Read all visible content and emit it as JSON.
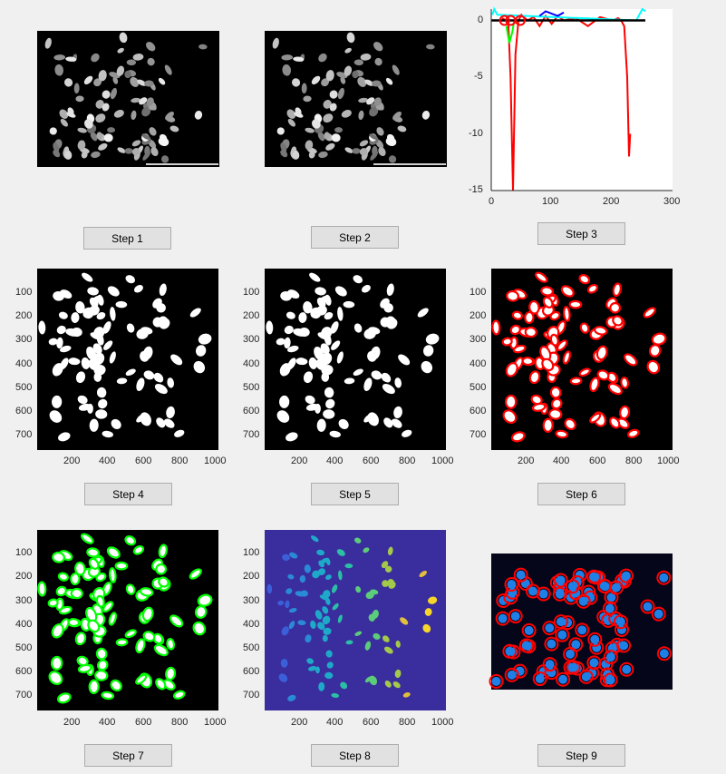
{
  "buttons": [
    "Step 1",
    "Step 2",
    "Step 3",
    "Step 4",
    "Step 5",
    "Step 6",
    "Step 7",
    "Step 8",
    "Step 9"
  ],
  "image_axes": {
    "x_ticks": [
      "200",
      "400",
      "600",
      "800",
      "1000"
    ],
    "y_ticks": [
      "100",
      "200",
      "300",
      "400",
      "500",
      "600",
      "700"
    ]
  },
  "chart_data": {
    "type": "line",
    "x_ticks": [
      "0",
      "100",
      "200",
      "300"
    ],
    "y_ticks": [
      "0",
      "-5",
      "-10",
      "-15"
    ],
    "xlim": [
      0,
      300
    ],
    "ylim": [
      -15,
      1
    ],
    "series": [
      {
        "color": "#ff0000",
        "x": [
          18,
          24,
          28,
          32,
          36,
          40,
          45,
          50,
          60,
          70,
          80,
          90,
          100,
          110,
          120,
          140,
          160,
          180,
          200,
          210,
          215,
          220,
          225,
          228,
          230
        ],
        "y": [
          0.2,
          0,
          0,
          -5,
          -15,
          -3,
          0,
          0.5,
          0,
          0.3,
          -0.5,
          0.4,
          -0.3,
          0.4,
          0,
          0.2,
          -0.5,
          0.3,
          0,
          0.2,
          0,
          -0.5,
          -5,
          -12,
          -10
        ]
      },
      {
        "color": "#00ff00",
        "x": [
          25,
          30,
          35,
          38
        ],
        "y": [
          -0.5,
          -2,
          -1,
          0
        ]
      },
      {
        "color": "#00ffff",
        "x": [
          2,
          5,
          10,
          240,
          250,
          255
        ],
        "y": [
          0.5,
          1,
          0.5,
          0,
          1,
          0.8
        ]
      },
      {
        "color": "#0000ff",
        "x": [
          80,
          90,
          110,
          120
        ],
        "y": [
          0.4,
          0.8,
          0.4,
          0.7
        ]
      },
      {
        "color": "#000000",
        "x": [
          0,
          255
        ],
        "y": [
          0,
          0
        ]
      }
    ]
  },
  "colors": {
    "background": "#f0f0f0",
    "red": "#ff0000",
    "green": "#00ff00",
    "navy": "#3a2d9e"
  }
}
